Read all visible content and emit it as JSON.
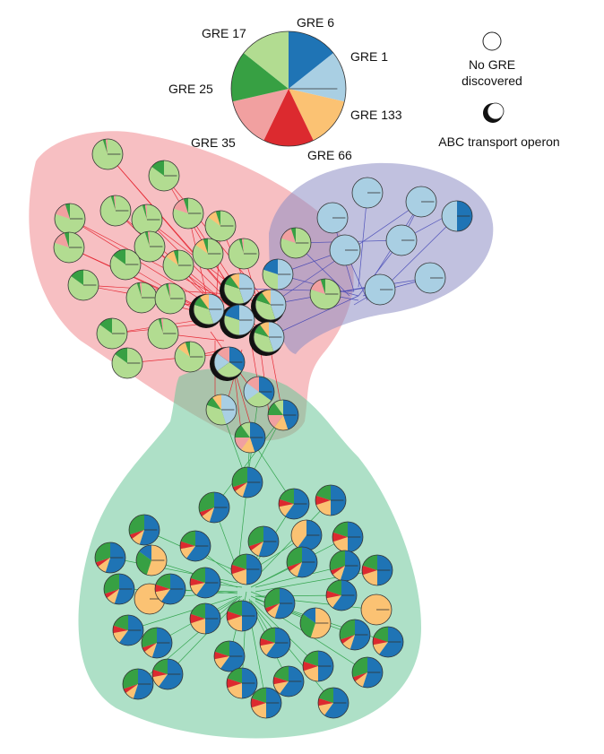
{
  "legend": {
    "slices": [
      {
        "key": "gre6",
        "label": "GRE 6",
        "color": "#1f74b5"
      },
      {
        "key": "gre1",
        "label": "GRE 1",
        "color": "#a9cfe3"
      },
      {
        "key": "gre133",
        "label": "GRE 133",
        "color": "#fbc273"
      },
      {
        "key": "gre66",
        "label": "GRE 66",
        "color": "#dc2a2f"
      },
      {
        "key": "gre35",
        "label": "GRE 35",
        "color": "#f1a0a0"
      },
      {
        "key": "gre25",
        "label": "GRE 25",
        "color": "#37a043"
      },
      {
        "key": "gre17",
        "label": "GRE 17",
        "color": "#b2dc91"
      }
    ],
    "no_gre_label_1": "No GRE",
    "no_gre_label_2": "discovered",
    "abc_label": "ABC transport operon"
  },
  "regions": [
    {
      "key": "red-cluster",
      "color": "#f08a8f"
    },
    {
      "key": "purple-cluster",
      "color": "#8e8ec4"
    },
    {
      "key": "green-cluster",
      "color": "#6cc799"
    }
  ],
  "edge_colors": {
    "red": "#e3131f",
    "blue": "#3b3fb3",
    "green": "#1f9a3a"
  },
  "node_styles": {
    "LG": [
      {
        "c": "gre17",
        "v": 0.95
      },
      {
        "c": "gre25",
        "v": 0.03
      },
      {
        "c": "gre35",
        "v": 0.02
      }
    ],
    "LGP": [
      {
        "c": "gre17",
        "v": 0.8
      },
      {
        "c": "gre35",
        "v": 0.15
      },
      {
        "c": "gre25",
        "v": 0.05
      }
    ],
    "LGY": [
      {
        "c": "gre17",
        "v": 0.85
      },
      {
        "c": "gre133",
        "v": 0.1
      },
      {
        "c": "gre25",
        "v": 0.05
      }
    ],
    "LGD": [
      {
        "c": "gre17",
        "v": 0.85
      },
      {
        "c": "gre25",
        "v": 0.15
      }
    ],
    "LB": [
      {
        "c": "gre1",
        "v": 1
      }
    ],
    "LB2": [
      {
        "c": "gre1",
        "v": 0.9
      },
      {
        "c": "gre17",
        "v": 0.1
      }
    ],
    "DKB": [
      {
        "c": "gre6",
        "v": 0.5
      },
      {
        "c": "gre1",
        "v": 0.5
      }
    ],
    "MX1": [
      {
        "c": "gre1",
        "v": 0.45
      },
      {
        "c": "gre17",
        "v": 0.35
      },
      {
        "c": "gre25",
        "v": 0.1
      },
      {
        "c": "gre133",
        "v": 0.1
      }
    ],
    "MX2": [
      {
        "c": "gre6",
        "v": 0.35
      },
      {
        "c": "gre17",
        "v": 0.3
      },
      {
        "c": "gre1",
        "v": 0.2
      },
      {
        "c": "gre35",
        "v": 0.15
      }
    ],
    "MX3": [
      {
        "c": "gre6",
        "v": 0.45
      },
      {
        "c": "gre133",
        "v": 0.15
      },
      {
        "c": "gre35",
        "v": 0.15
      },
      {
        "c": "gre25",
        "v": 0.15
      },
      {
        "c": "gre17",
        "v": 0.1
      }
    ],
    "MX4": [
      {
        "c": "gre1",
        "v": 0.5
      },
      {
        "c": "gre17",
        "v": 0.3
      },
      {
        "c": "gre6",
        "v": 0.2
      }
    ],
    "B1": [
      {
        "c": "gre6",
        "v": 0.55
      },
      {
        "c": "gre133",
        "v": 0.1
      },
      {
        "c": "gre66",
        "v": 0.05
      },
      {
        "c": "gre25",
        "v": 0.3
      }
    ],
    "B2": [
      {
        "c": "gre6",
        "v": 0.6
      },
      {
        "c": "gre133",
        "v": 0.12
      },
      {
        "c": "gre66",
        "v": 0.08
      },
      {
        "c": "gre25",
        "v": 0.2
      }
    ],
    "B3": [
      {
        "c": "gre6",
        "v": 0.5
      },
      {
        "c": "gre133",
        "v": 0.2
      },
      {
        "c": "gre66",
        "v": 0.1
      },
      {
        "c": "gre25",
        "v": 0.2
      }
    ],
    "B4": [
      {
        "c": "gre6",
        "v": 0.6
      },
      {
        "c": "gre133",
        "v": 0.4
      }
    ],
    "O": [
      {
        "c": "gre133",
        "v": 1
      }
    ],
    "OG": [
      {
        "c": "gre133",
        "v": 0.55
      },
      {
        "c": "gre25",
        "v": 0.3
      },
      {
        "c": "gre6",
        "v": 0.15
      }
    ]
  },
  "regular_nodes": [
    [
      "LG",
      120,
      172
    ],
    [
      "LGD",
      183,
      196
    ],
    [
      "LGP",
      78,
      244
    ],
    [
      "LG",
      129,
      235
    ],
    [
      "LGP",
      210,
      238
    ],
    [
      "LG",
      164,
      245
    ],
    [
      "LGY",
      246,
      252
    ],
    [
      "LGP",
      77,
      276
    ],
    [
      "LG",
      167,
      275
    ],
    [
      "LGY",
      232,
      283
    ],
    [
      "LG",
      272,
      283
    ],
    [
      "LGY",
      199,
      296
    ],
    [
      "LGD",
      140,
      295
    ],
    [
      "LGD",
      93,
      318
    ],
    [
      "LG",
      158,
      332
    ],
    [
      "LG",
      190,
      333
    ],
    [
      "LGD",
      125,
      372
    ],
    [
      "LG",
      182,
      372
    ],
    [
      "LGD",
      142,
      405
    ],
    [
      "LGY",
      212,
      398
    ],
    [
      "MX4",
      310,
      306
    ],
    [
      "LGP",
      330,
      271
    ],
    [
      "LGP",
      363,
      328
    ],
    [
      "LB",
      410,
      215
    ],
    [
      "LB",
      470,
      225
    ],
    [
      "DKB",
      510,
      241
    ],
    [
      "LB",
      371,
      243
    ],
    [
      "LB",
      448,
      268
    ],
    [
      "LB",
      385,
      279
    ],
    [
      "LB",
      424,
      323
    ],
    [
      "LB",
      480,
      310
    ],
    [
      "MX2",
      289,
      437
    ],
    [
      "MX3",
      316,
      463
    ],
    [
      "MX1",
      247,
      457
    ],
    [
      "MX3",
      279,
      488
    ],
    [
      "B1",
      276,
      538
    ],
    [
      "B1",
      161,
      591
    ],
    [
      "B1",
      239,
      566
    ],
    [
      "B2",
      328,
      562
    ],
    [
      "B3",
      369,
      558
    ],
    [
      "B4",
      342,
      597
    ],
    [
      "B3",
      388,
      599
    ],
    [
      "B1",
      123,
      622
    ],
    [
      "OG",
      169,
      625
    ],
    [
      "B2",
      218,
      609
    ],
    [
      "B1",
      294,
      604
    ],
    [
      "B2",
      229,
      650
    ],
    [
      "B3",
      275,
      635
    ],
    [
      "B1",
      337,
      627
    ],
    [
      "B1",
      385,
      631
    ],
    [
      "B3",
      421,
      636
    ],
    [
      "B1",
      133,
      657
    ],
    [
      "O",
      167,
      668
    ],
    [
      "B2",
      190,
      657
    ],
    [
      "B1",
      312,
      673
    ],
    [
      "B2",
      381,
      664
    ],
    [
      "O",
      420,
      680
    ],
    [
      "B3",
      270,
      687
    ],
    [
      "OG",
      352,
      695
    ],
    [
      "B2",
      143,
      703
    ],
    [
      "B1",
      175,
      717
    ],
    [
      "B3",
      229,
      690
    ],
    [
      "B2",
      307,
      717
    ],
    [
      "B1",
      396,
      708
    ],
    [
      "B2",
      433,
      716
    ],
    [
      "B2",
      256,
      732
    ],
    [
      "B3",
      355,
      743
    ],
    [
      "B1",
      410,
      750
    ],
    [
      "B2",
      187,
      752
    ],
    [
      "B3",
      270,
      762
    ],
    [
      "B2",
      322,
      760
    ],
    [
      "B1",
      154,
      763
    ],
    [
      "B3",
      297,
      784
    ],
    [
      "B2",
      372,
      784
    ]
  ],
  "operon_nodes": [
    [
      "MX1",
      233,
      345
    ],
    [
      "MX1",
      267,
      322
    ],
    [
      "MX1",
      302,
      340
    ],
    [
      "MX4",
      267,
      357
    ],
    [
      "MX1",
      300,
      376
    ],
    [
      "MX2",
      256,
      404
    ]
  ],
  "red_edges": [
    [
      120,
      172,
      267,
      340
    ],
    [
      183,
      196,
      267,
      340
    ],
    [
      78,
      244,
      250,
      350
    ],
    [
      129,
      235,
      250,
      350
    ],
    [
      210,
      238,
      270,
      330
    ],
    [
      164,
      245,
      260,
      340
    ],
    [
      246,
      252,
      280,
      330
    ],
    [
      77,
      276,
      240,
      350
    ],
    [
      167,
      275,
      260,
      345
    ],
    [
      232,
      283,
      270,
      340
    ],
    [
      272,
      283,
      290,
      345
    ],
    [
      199,
      296,
      255,
      355
    ],
    [
      140,
      295,
      250,
      360
    ],
    [
      93,
      318,
      240,
      345
    ],
    [
      158,
      332,
      250,
      355
    ],
    [
      190,
      333,
      260,
      360
    ],
    [
      125,
      372,
      240,
      360
    ],
    [
      182,
      372,
      250,
      380
    ],
    [
      142,
      405,
      245,
      395
    ],
    [
      212,
      398,
      250,
      390
    ],
    [
      120,
      172,
      300,
      380
    ],
    [
      78,
      244,
      300,
      360
    ],
    [
      183,
      196,
      300,
      340
    ],
    [
      129,
      235,
      290,
      370
    ],
    [
      246,
      252,
      240,
      360
    ],
    [
      77,
      276,
      290,
      375
    ],
    [
      210,
      238,
      235,
      350
    ],
    [
      164,
      245,
      300,
      350
    ],
    [
      93,
      318,
      290,
      330
    ],
    [
      125,
      372,
      300,
      345
    ],
    [
      240,
      380,
      240,
      450
    ],
    [
      255,
      390,
      280,
      475
    ],
    [
      270,
      390,
      250,
      460
    ],
    [
      280,
      380,
      290,
      440
    ],
    [
      260,
      400,
      270,
      490
    ],
    [
      290,
      385,
      300,
      460
    ],
    [
      235,
      370,
      285,
      440
    ],
    [
      300,
      380,
      316,
      465
    ]
  ],
  "blue_edges": [
    [
      410,
      215,
      400,
      320
    ],
    [
      470,
      225,
      410,
      320
    ],
    [
      510,
      241,
      430,
      320
    ],
    [
      371,
      243,
      395,
      325
    ],
    [
      448,
      268,
      400,
      330
    ],
    [
      385,
      279,
      410,
      335
    ],
    [
      424,
      323,
      395,
      340
    ],
    [
      480,
      310,
      405,
      330
    ],
    [
      448,
      268,
      500,
      240
    ],
    [
      448,
      268,
      470,
      225
    ],
    [
      330,
      271,
      390,
      330
    ],
    [
      363,
      328,
      400,
      335
    ],
    [
      310,
      306,
      400,
      330
    ],
    [
      300,
      340,
      410,
      320
    ],
    [
      300,
      376,
      400,
      330
    ],
    [
      267,
      322,
      395,
      325
    ],
    [
      302,
      340,
      470,
      225
    ],
    [
      330,
      271,
      448,
      268
    ],
    [
      363,
      328,
      480,
      310
    ],
    [
      310,
      306,
      385,
      279
    ]
  ],
  "green_edges": [
    [
      276,
      538,
      265,
      640
    ],
    [
      161,
      591,
      270,
      640
    ],
    [
      239,
      566,
      270,
      650
    ],
    [
      328,
      562,
      275,
      645
    ],
    [
      369,
      558,
      280,
      650
    ],
    [
      342,
      597,
      275,
      640
    ],
    [
      388,
      599,
      280,
      655
    ],
    [
      123,
      622,
      265,
      650
    ],
    [
      169,
      625,
      265,
      655
    ],
    [
      218,
      609,
      270,
      650
    ],
    [
      294,
      604,
      275,
      650
    ],
    [
      229,
      650,
      270,
      655
    ],
    [
      337,
      627,
      280,
      655
    ],
    [
      385,
      631,
      285,
      655
    ],
    [
      421,
      636,
      285,
      660
    ],
    [
      133,
      657,
      265,
      660
    ],
    [
      167,
      668,
      265,
      660
    ],
    [
      190,
      657,
      265,
      662
    ],
    [
      312,
      673,
      280,
      660
    ],
    [
      381,
      664,
      285,
      665
    ],
    [
      420,
      680,
      285,
      665
    ],
    [
      270,
      687,
      275,
      660
    ],
    [
      352,
      695,
      280,
      665
    ],
    [
      143,
      703,
      265,
      665
    ],
    [
      175,
      717,
      268,
      665
    ],
    [
      229,
      690,
      270,
      665
    ],
    [
      307,
      717,
      278,
      668
    ],
    [
      396,
      708,
      285,
      668
    ],
    [
      433,
      716,
      285,
      668
    ],
    [
      256,
      732,
      272,
      668
    ],
    [
      355,
      743,
      280,
      670
    ],
    [
      410,
      750,
      285,
      670
    ],
    [
      187,
      752,
      268,
      668
    ],
    [
      270,
      762,
      275,
      670
    ],
    [
      322,
      760,
      278,
      670
    ],
    [
      154,
      763,
      265,
      668
    ],
    [
      297,
      784,
      276,
      672
    ],
    [
      372,
      784,
      280,
      672
    ],
    [
      276,
      538,
      279,
      488
    ],
    [
      276,
      538,
      316,
      463
    ],
    [
      276,
      538,
      247,
      457
    ],
    [
      276,
      538,
      289,
      437
    ],
    [
      239,
      566,
      316,
      463
    ],
    [
      328,
      562,
      279,
      488
    ]
  ]
}
